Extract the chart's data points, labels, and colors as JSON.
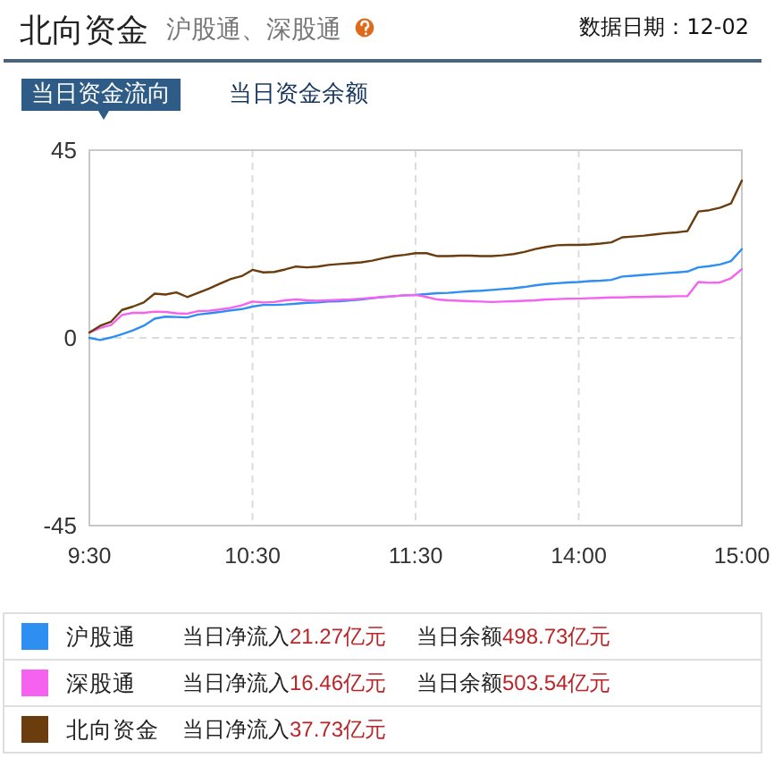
{
  "chart_data": {
    "type": "line",
    "title": "北向资金",
    "subtitle": "沪股通、深股通",
    "annotations": [
      "数据日期：12-02",
      "当日资金流向",
      "当日资金余额",
      "当日净流入21.27亿元",
      "当日余额498.73亿元",
      "当日净流入16.46亿元",
      "当日余额503.54亿元",
      "当日净流入37.73亿元"
    ],
    "categories": [
      "9:30",
      null,
      null,
      null,
      null,
      null,
      null,
      null,
      null,
      null,
      null,
      null,
      null,
      null,
      null,
      "10:30",
      null,
      null,
      null,
      null,
      null,
      null,
      null,
      null,
      null,
      null,
      null,
      null,
      null,
      null,
      "11:30",
      null,
      null,
      null,
      null,
      null,
      null,
      null,
      null,
      null,
      null,
      null,
      null,
      null,
      null,
      "14:00",
      null,
      null,
      null,
      null,
      null,
      null,
      null,
      null,
      null,
      null,
      null,
      null,
      null,
      null,
      "15:00"
    ],
    "ylim": [
      -45,
      45
    ],
    "yticks": [
      -45,
      0,
      45
    ],
    "grid": true,
    "legend": "bottom",
    "series": [
      {
        "name": "沪股通",
        "color": "#2f8ef2",
        "values": [
          0,
          -0.5,
          0.1,
          0.9,
          1.8,
          2.9,
          4.6,
          5.1,
          5.0,
          4.9,
          5.6,
          5.9,
          6.2,
          6.6,
          6.9,
          7.5,
          7.9,
          7.9,
          8.0,
          8.2,
          8.4,
          8.5,
          8.7,
          8.8,
          9.0,
          9.2,
          9.5,
          9.8,
          10.0,
          10.2,
          10.3,
          10.5,
          10.7,
          10.8,
          11.0,
          11.2,
          11.3,
          11.5,
          11.7,
          11.9,
          12.2,
          12.6,
          12.9,
          13.1,
          13.3,
          13.4,
          13.6,
          13.7,
          13.9,
          14.7,
          14.9,
          15.1,
          15.3,
          15.5,
          15.7,
          15.9,
          16.9,
          17.2,
          17.6,
          18.4,
          21.27
        ]
      },
      {
        "name": "深股通",
        "color": "#f562f0",
        "values": [
          1.3,
          2.4,
          3.1,
          5.5,
          6.0,
          6.0,
          6.3,
          6.2,
          5.9,
          5.8,
          6.4,
          6.5,
          6.8,
          7.2,
          7.8,
          8.7,
          8.5,
          8.6,
          9.0,
          9.2,
          9.0,
          8.9,
          9.0,
          9.1,
          9.2,
          9.4,
          9.6,
          9.8,
          10.0,
          10.2,
          10.3,
          9.8,
          9.2,
          9.0,
          8.9,
          8.8,
          8.7,
          8.6,
          8.7,
          8.8,
          8.9,
          9.0,
          9.2,
          9.3,
          9.4,
          9.4,
          9.5,
          9.6,
          9.7,
          9.7,
          9.8,
          9.8,
          9.9,
          9.9,
          10.0,
          10.0,
          13.4,
          13.2,
          13.3,
          14.3,
          16.46
        ]
      },
      {
        "name": "北向资金",
        "color": "#6b3d0e",
        "values": [
          1.3,
          2.9,
          3.9,
          6.7,
          7.5,
          8.5,
          10.6,
          10.4,
          10.9,
          9.8,
          10.8,
          11.8,
          13.0,
          14.1,
          14.8,
          16.3,
          15.7,
          15.8,
          16.4,
          17.1,
          16.9,
          17.1,
          17.5,
          17.7,
          17.9,
          18.1,
          18.5,
          19.1,
          19.6,
          19.9,
          20.3,
          20.3,
          19.6,
          19.6,
          19.7,
          19.7,
          19.6,
          19.6,
          19.8,
          20.1,
          20.6,
          21.3,
          21.8,
          22.2,
          22.3,
          22.3,
          22.4,
          22.6,
          22.9,
          24.1,
          24.3,
          24.5,
          24.8,
          25.1,
          25.3,
          25.6,
          30.3,
          30.6,
          31.2,
          32.2,
          37.73
        ]
      }
    ]
  }
}
